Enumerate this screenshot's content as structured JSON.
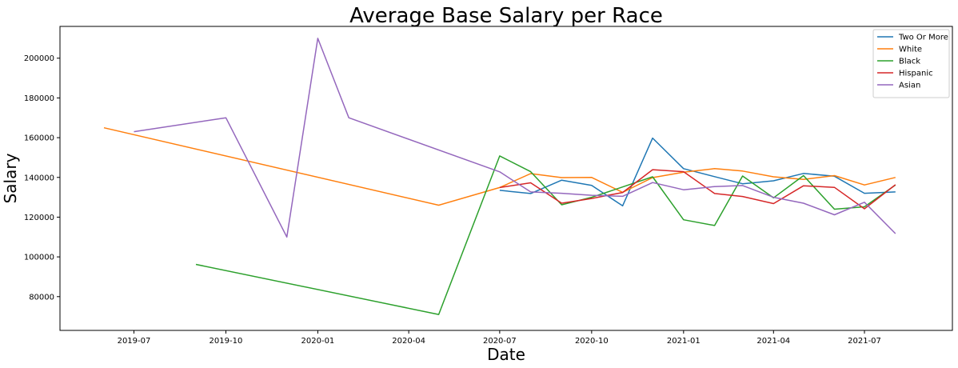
{
  "chart_data": {
    "type": "line",
    "title": "Average Base Salary per Race",
    "xlabel": "Date",
    "ylabel": "Salary",
    "xlim": [
      "2019-04-18",
      "2021-09-27"
    ],
    "ylim": [
      63000,
      216000
    ],
    "x_ticks": [
      "2019-07",
      "2019-10",
      "2020-01",
      "2020-04",
      "2020-07",
      "2020-10",
      "2021-01",
      "2021-04",
      "2021-07"
    ],
    "y_ticks": [
      80000,
      100000,
      120000,
      140000,
      160000,
      180000,
      200000
    ],
    "grid": false,
    "legend_position": "top-right",
    "series": [
      {
        "name": "Two Or More",
        "color": "#1f77b4",
        "x": [
          "2020-07-01",
          "2020-08-01",
          "2020-09-01",
          "2020-10-01",
          "2020-11-01",
          "2020-12-01",
          "2021-01-01",
          "2021-02-01",
          "2021-03-01",
          "2021-04-01",
          "2021-05-01",
          "2021-06-01",
          "2021-07-01",
          "2021-08-01"
        ],
        "y": [
          133500,
          131900,
          138600,
          136000,
          125700,
          159800,
          144400,
          140400,
          136800,
          138300,
          142000,
          140600,
          132000,
          132700
        ]
      },
      {
        "name": "White",
        "color": "#ff7f0e",
        "x": [
          "2019-06-01",
          "2020-05-01",
          "2020-07-01",
          "2020-08-01",
          "2020-09-01",
          "2020-10-01",
          "2020-11-01",
          "2020-12-01",
          "2021-01-01",
          "2021-02-01",
          "2021-03-01",
          "2021-04-01",
          "2021-05-01",
          "2021-06-01",
          "2021-07-01",
          "2021-08-01"
        ],
        "y": [
          165000,
          126000,
          134900,
          141900,
          139900,
          140000,
          132500,
          139900,
          142600,
          144400,
          143200,
          140300,
          139000,
          140900,
          136200,
          140000
        ]
      },
      {
        "name": "Black",
        "color": "#2ca02c",
        "x": [
          "2019-09-01",
          "2020-05-01",
          "2020-07-01",
          "2020-08-01",
          "2020-09-01",
          "2020-10-01",
          "2020-11-01",
          "2020-12-01",
          "2021-01-01",
          "2021-02-01",
          "2021-03-01",
          "2021-04-01",
          "2021-05-01",
          "2021-06-01",
          "2021-07-01",
          "2021-08-01"
        ],
        "y": [
          96200,
          71000,
          150800,
          142900,
          126200,
          130000,
          135200,
          140300,
          118700,
          115800,
          140700,
          129700,
          140900,
          124000,
          125200,
          136200
        ]
      },
      {
        "name": "Hispanic",
        "color": "#d62728",
        "x": [
          "2020-07-01",
          "2020-08-01",
          "2020-09-01",
          "2020-10-01",
          "2020-11-01",
          "2020-12-01",
          "2021-01-01",
          "2021-02-01",
          "2021-03-01",
          "2021-04-01",
          "2021-05-01",
          "2021-06-01",
          "2021-07-01",
          "2021-08-01"
        ],
        "y": [
          134900,
          137300,
          127000,
          129400,
          132400,
          143900,
          142900,
          131900,
          130400,
          126800,
          135800,
          135000,
          124200,
          136300
        ]
      },
      {
        "name": "Asian",
        "color": "#9467bd",
        "x": [
          "2019-07-01",
          "2019-10-01",
          "2019-12-01",
          "2020-01-01",
          "2020-02-01",
          "2020-07-01",
          "2020-08-01",
          "2020-09-01",
          "2020-10-01",
          "2020-11-01",
          "2020-12-01",
          "2021-01-01",
          "2021-02-01",
          "2021-03-01",
          "2021-04-01",
          "2021-05-01",
          "2021-06-01",
          "2021-07-01",
          "2021-08-01"
        ],
        "y": [
          163000,
          170000,
          110000,
          210000,
          170000,
          142800,
          132700,
          132000,
          131000,
          130500,
          137400,
          133800,
          135400,
          135900,
          130000,
          127000,
          121200,
          127500,
          111700
        ]
      }
    ]
  }
}
